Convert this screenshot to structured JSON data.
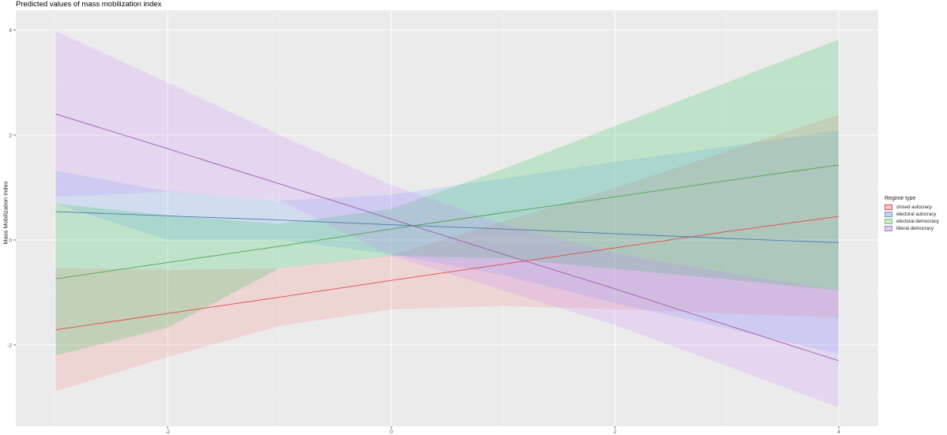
{
  "title": "Predicted values of mass mobilization index",
  "chart_data": {
    "type": "line",
    "title": "Predicted values of mass mobilization index",
    "xlabel": "",
    "ylabel": "Mass Mobilization Index",
    "xlim": [
      -3.35,
      4.35
    ],
    "ylim": [
      -3.5,
      4.2
    ],
    "x_ticks": [
      -2,
      0,
      2,
      4
    ],
    "y_ticks": [
      -2,
      0,
      2,
      4
    ],
    "grid": true,
    "legend_position": "right",
    "legend_title": "Regime type",
    "x": [
      -3,
      -2,
      -1,
      0,
      1,
      2,
      3,
      4
    ],
    "series": [
      {
        "name": "closed autocracy",
        "color": "#E8474A",
        "fill": "#F8766D",
        "values": [
          -1.71,
          -1.4,
          -1.09,
          -0.77,
          -0.46,
          -0.15,
          0.16,
          0.45
        ],
        "lower": [
          -2.88,
          -2.23,
          -1.64,
          -1.32,
          -1.26,
          -1.32,
          -1.4,
          -1.48
        ],
        "upper": [
          -0.53,
          -0.57,
          -0.54,
          -0.29,
          0.35,
          0.99,
          1.69,
          2.39
        ]
      },
      {
        "name": "electoral autocracy",
        "color": "#4A7FB5",
        "fill": "#619CFF",
        "values": [
          0.54,
          0.46,
          0.38,
          0.29,
          0.21,
          0.12,
          0.03,
          -0.05
        ],
        "lower": [
          0.69,
          0.0,
          0.0,
          -0.27,
          -0.67,
          -1.2,
          -1.68,
          -2.17
        ],
        "upper": [
          1.32,
          0.93,
          0.75,
          0.86,
          1.17,
          1.49,
          1.78,
          2.09
        ]
      },
      {
        "name": "electoral democracy",
        "color": "#4CA64C",
        "fill": "#00BA38",
        "values": [
          -0.74,
          -0.43,
          -0.12,
          0.21,
          0.52,
          0.82,
          1.13,
          1.43
        ],
        "lower": [
          -2.2,
          -1.67,
          -0.54,
          -0.3,
          -0.35,
          -0.55,
          -0.75,
          -0.96
        ],
        "upper": [
          0.69,
          0.47,
          0.31,
          0.59,
          1.35,
          2.17,
          3.0,
          3.82
        ]
      },
      {
        "name": "liberal democracy",
        "color": "#A05CB0",
        "fill": "#C77CFF",
        "values": [
          2.4,
          1.74,
          1.07,
          0.4,
          -0.27,
          -0.93,
          -1.62,
          -2.3
        ],
        "lower": [
          0.82,
          0.92,
          0.76,
          -0.3,
          -0.96,
          -1.62,
          -2.4,
          -3.19
        ],
        "upper": [
          3.98,
          3.0,
          2.0,
          1.05,
          0.3,
          -0.25,
          -0.62,
          -0.96
        ]
      }
    ]
  },
  "axis": {
    "y_title": "Mass Mobilization Index",
    "y_tick_labels": [
      "4",
      "2",
      "0",
      "-2"
    ],
    "x_tick_labels": [
      "-2",
      "0",
      "2",
      "4"
    ]
  },
  "legend": {
    "title": "Regime type",
    "items": [
      {
        "label": "closed autocracy",
        "color": "#E8474A",
        "fill": "#F4C9C9"
      },
      {
        "label": "electoral autocracy",
        "color": "#6B9AD0",
        "fill": "#C9D2E8"
      },
      {
        "label": "electoral democracy",
        "color": "#7CC57C",
        "fill": "#CDE6CD"
      },
      {
        "label": "liberal democracy",
        "color": "#B07CC6",
        "fill": "#E2CCE6"
      }
    ]
  }
}
